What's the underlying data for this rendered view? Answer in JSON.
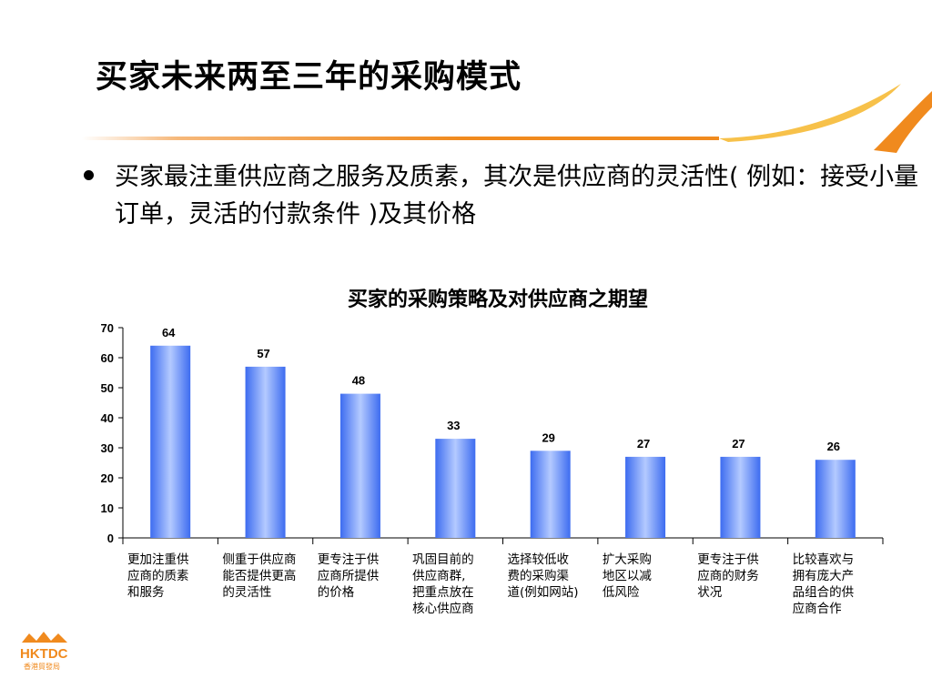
{
  "slide": {
    "title": "买家未来两至三年的采购模式",
    "bullet": "买家最注重供应商之服务及质素，其次是供应商的灵活性( 例如：接受小量订单，灵活的付款条件 )及其价格"
  },
  "logo": {
    "text": "HKTDC",
    "subtext": "香港貿發局",
    "icon": "hktdc-logo"
  },
  "colors": {
    "bar_edge": "#3d6cf0",
    "bar_mid": "#b4caff",
    "accent_orange": "#f08a1e",
    "accent_gold": "#f7c14a"
  },
  "chart_data": {
    "type": "bar",
    "title": "买家的采购策略及对供应商之期望",
    "categories": [
      [
        "更加注重供",
        "应商的质素",
        "和服务"
      ],
      [
        "侧重于供应商",
        "能否提供更高",
        "的灵活性"
      ],
      [
        "更专注于供",
        "应商所提供",
        "的价格"
      ],
      [
        "巩固目前的",
        "供应商群,",
        "把重点放在",
        "核心供应商"
      ],
      [
        "选择较低收",
        "费的采购渠",
        "道(例如网站)"
      ],
      [
        "扩大采购",
        "地区以减",
        "低风险"
      ],
      [
        "更专注于供",
        "应商的财务",
        "状况"
      ],
      [
        "比较喜欢与",
        "拥有庞大产",
        "品组合的供",
        "应商合作"
      ]
    ],
    "values": [
      64,
      57,
      48,
      33,
      29,
      27,
      27,
      26
    ],
    "ylim": [
      0,
      70
    ],
    "yticks": [
      0,
      10,
      20,
      30,
      40,
      50,
      60,
      70
    ],
    "grid": false,
    "legend": "none"
  }
}
